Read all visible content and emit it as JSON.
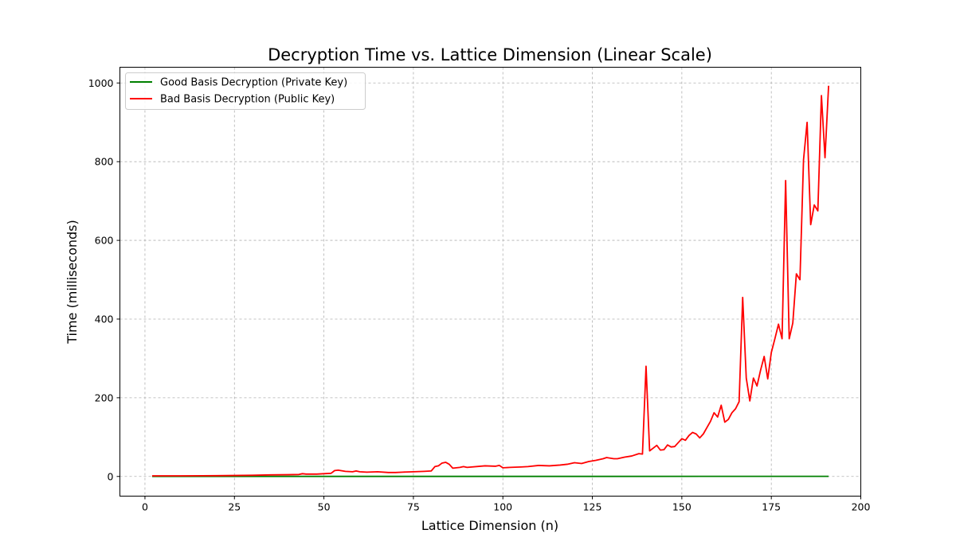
{
  "chart_data": {
    "type": "line",
    "title": "Decryption Time vs. Lattice Dimension (Linear Scale)",
    "xlabel": "Lattice Dimension (n)",
    "ylabel": "Time (milliseconds)",
    "xlim": [
      -7,
      200
    ],
    "ylim": [
      -50,
      1040
    ],
    "xticks": [
      0,
      25,
      50,
      75,
      100,
      125,
      150,
      175,
      200
    ],
    "yticks": [
      0,
      200,
      400,
      600,
      800,
      1000
    ],
    "grid": true,
    "legend_position": "top-left",
    "series": [
      {
        "name": "Good Basis Decryption (Private Key)",
        "color": "#008000",
        "points": [
          [
            2,
            0.1
          ],
          [
            191,
            0.3
          ]
        ]
      },
      {
        "name": "Bad Basis Decryption (Public Key)",
        "color": "#ff0000",
        "points": [
          [
            2,
            1.5
          ],
          [
            10,
            1.5
          ],
          [
            20,
            2
          ],
          [
            30,
            3
          ],
          [
            35,
            4
          ],
          [
            40,
            4.5
          ],
          [
            43,
            5
          ],
          [
            44,
            7
          ],
          [
            45,
            6
          ],
          [
            48,
            6
          ],
          [
            50,
            7
          ],
          [
            52,
            8
          ],
          [
            53,
            15
          ],
          [
            54,
            16
          ],
          [
            56,
            13
          ],
          [
            58,
            12
          ],
          [
            59,
            14
          ],
          [
            60,
            12
          ],
          [
            62,
            11
          ],
          [
            65,
            12
          ],
          [
            68,
            10
          ],
          [
            70,
            10
          ],
          [
            72,
            11
          ],
          [
            75,
            12
          ],
          [
            78,
            13
          ],
          [
            80,
            14
          ],
          [
            81,
            25
          ],
          [
            82,
            27
          ],
          [
            83,
            34
          ],
          [
            84,
            36
          ],
          [
            85,
            31
          ],
          [
            86,
            21
          ],
          [
            88,
            23
          ],
          [
            89,
            25
          ],
          [
            90,
            23
          ],
          [
            95,
            27
          ],
          [
            98,
            26
          ],
          [
            99,
            28
          ],
          [
            100,
            22
          ],
          [
            102,
            23
          ],
          [
            105,
            24
          ],
          [
            107,
            25
          ],
          [
            110,
            28
          ],
          [
            113,
            27
          ],
          [
            116,
            29
          ],
          [
            118,
            31
          ],
          [
            120,
            35
          ],
          [
            122,
            33
          ],
          [
            124,
            38
          ],
          [
            126,
            41
          ],
          [
            128,
            45
          ],
          [
            129,
            48
          ],
          [
            131,
            45
          ],
          [
            132,
            45
          ],
          [
            134,
            49
          ],
          [
            136,
            52
          ],
          [
            138,
            58
          ],
          [
            139,
            57
          ],
          [
            140,
            280
          ],
          [
            141,
            65
          ],
          [
            142,
            72
          ],
          [
            143,
            79
          ],
          [
            144,
            67
          ],
          [
            145,
            68
          ],
          [
            146,
            80
          ],
          [
            147,
            75
          ],
          [
            148,
            76
          ],
          [
            150,
            96
          ],
          [
            151,
            92
          ],
          [
            152,
            104
          ],
          [
            153,
            112
          ],
          [
            154,
            108
          ],
          [
            155,
            98
          ],
          [
            156,
            108
          ],
          [
            157,
            124
          ],
          [
            158,
            140
          ],
          [
            159,
            162
          ],
          [
            160,
            151
          ],
          [
            161,
            181
          ],
          [
            162,
            138
          ],
          [
            163,
            145
          ],
          [
            164,
            162
          ],
          [
            165,
            172
          ],
          [
            166,
            190
          ],
          [
            167,
            455
          ],
          [
            168,
            250
          ],
          [
            169,
            192
          ],
          [
            170,
            250
          ],
          [
            171,
            230
          ],
          [
            172,
            270
          ],
          [
            173,
            305
          ],
          [
            174,
            248
          ],
          [
            175,
            315
          ],
          [
            176,
            350
          ],
          [
            177,
            387
          ],
          [
            178,
            350
          ],
          [
            179,
            752
          ],
          [
            180,
            350
          ],
          [
            181,
            390
          ],
          [
            182,
            515
          ],
          [
            183,
            500
          ],
          [
            184,
            805
          ],
          [
            185,
            900
          ],
          [
            186,
            640
          ],
          [
            187,
            690
          ],
          [
            188,
            675
          ],
          [
            189,
            968
          ],
          [
            190,
            810
          ],
          [
            191,
            993
          ]
        ]
      }
    ]
  }
}
